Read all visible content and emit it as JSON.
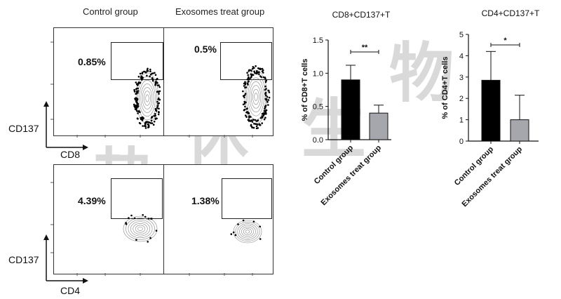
{
  "flow": {
    "column_headers": [
      "Control group",
      "Exosomes treat group"
    ],
    "top_row": {
      "y_label": "CD137",
      "x_label": "CD8",
      "percentages": [
        "0.85%",
        "0.5%"
      ]
    },
    "bottom_row": {
      "y_label": "CD137",
      "x_label": "CD4",
      "percentages": [
        "4.39%",
        "1.38%"
      ]
    }
  },
  "watermark": [
    "热",
    "休",
    "生",
    "物"
  ],
  "chart_data": [
    {
      "type": "bar",
      "title": "CD8+CD137+T",
      "ylabel": "% of CD8+T cells",
      "xlabel": "",
      "categories": [
        "Control group",
        "Exosomes treat group"
      ],
      "values": [
        0.9,
        0.4
      ],
      "errors": [
        0.22,
        0.12
      ],
      "ylim": [
        0,
        1.5
      ],
      "yticks": [
        "0.0",
        "0.5",
        "1.0",
        "1.5"
      ],
      "significance": "**",
      "colors": [
        "#000000",
        "#a6a6ad"
      ]
    },
    {
      "type": "bar",
      "title": "CD4+CD137+T",
      "ylabel": "% of CD4+T cells",
      "xlabel": "",
      "categories": [
        "Control group",
        "Exosomes treat group"
      ],
      "values": [
        2.85,
        1.0
      ],
      "errors": [
        1.35,
        1.15
      ],
      "ylim": [
        0,
        5
      ],
      "yticks": [
        "0",
        "1",
        "2",
        "3",
        "4",
        "5"
      ],
      "significance": "*",
      "colors": [
        "#000000",
        "#a6a6ad"
      ]
    }
  ]
}
